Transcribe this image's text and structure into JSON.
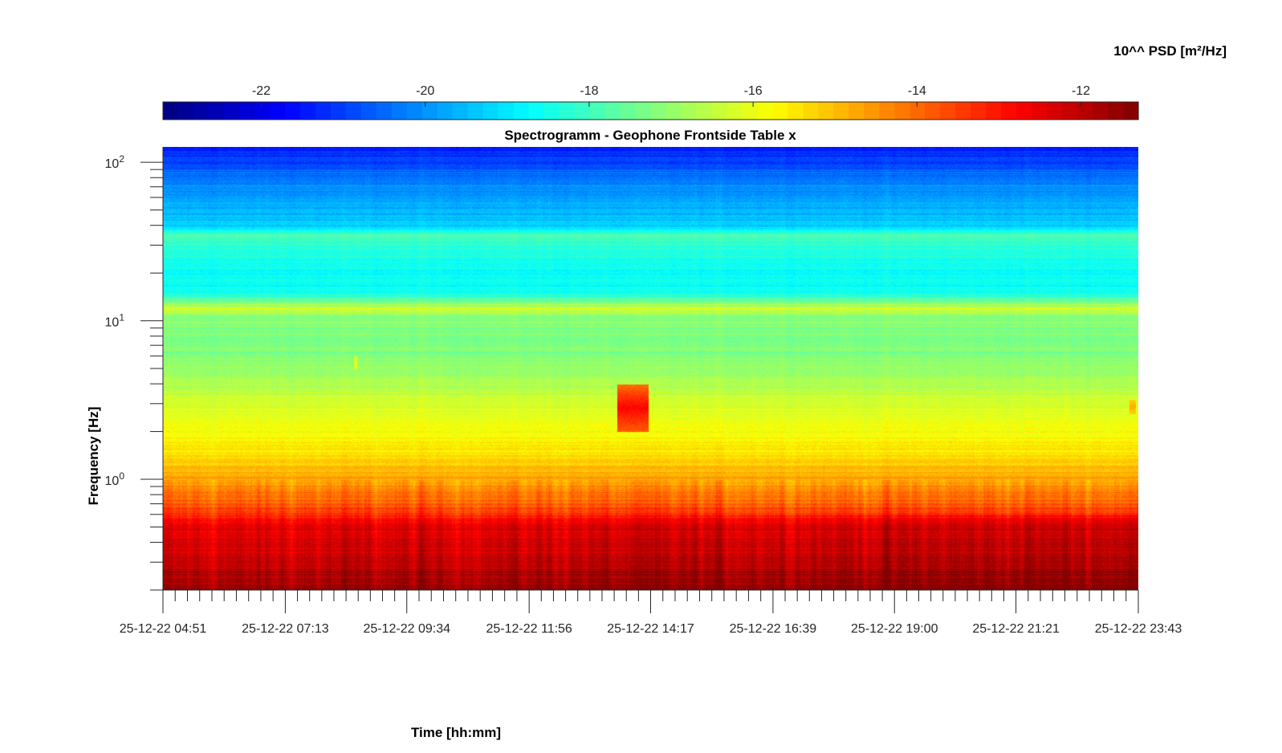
{
  "chart_data": {
    "type": "heatmap",
    "title": "Spectrogramm - Geophone Frontside Table x",
    "xlabel": "Time [hh:mm]",
    "ylabel": "Frequency [Hz]",
    "colorbar_label": "10^^ PSD [m²/Hz]",
    "colormap": "jet",
    "y_scale": "log",
    "ylim": [
      0.2,
      125
    ],
    "clim": [
      -23.2,
      -11.3
    ],
    "x_range": [
      "25-12-22 04:51",
      "25-12-22 23:43"
    ],
    "x_ticks": [
      "25-12-22 04:51",
      "25-12-22 07:13",
      "25-12-22 09:34",
      "25-12-22 11:56",
      "25-12-22 14:17",
      "25-12-22 16:39",
      "25-12-22 19:00",
      "25-12-22 21:21",
      "25-12-22 23:43"
    ],
    "y_ticks": [
      {
        "base": "10",
        "exp": "0",
        "value": 1
      },
      {
        "base": "10",
        "exp": "1",
        "value": 10
      },
      {
        "base": "10",
        "exp": "2",
        "value": 100
      }
    ],
    "colorbar_ticks": [
      "-22",
      "-20",
      "-18",
      "-16",
      "-14",
      "-12"
    ],
    "colorbar_tick_values": [
      -22,
      -20,
      -18,
      -16,
      -14,
      -12
    ],
    "psd_profile": [
      {
        "freq_hz": 0.2,
        "log_psd": -11.6
      },
      {
        "freq_hz": 0.3,
        "log_psd": -12.2
      },
      {
        "freq_hz": 0.5,
        "log_psd": -12.6
      },
      {
        "freq_hz": 0.7,
        "log_psd": -13.8
      },
      {
        "freq_hz": 1.0,
        "log_psd": -14.7
      },
      {
        "freq_hz": 1.5,
        "log_psd": -15.5
      },
      {
        "freq_hz": 2.0,
        "log_psd": -15.8
      },
      {
        "freq_hz": 3.0,
        "log_psd": -16.2
      },
      {
        "freq_hz": 5.0,
        "log_psd": -17.0
      },
      {
        "freq_hz": 8.0,
        "log_psd": -17.4
      },
      {
        "freq_hz": 11.0,
        "log_psd": -17.0
      },
      {
        "freq_hz": 12.0,
        "log_psd": -16.2
      },
      {
        "freq_hz": 13.0,
        "log_psd": -17.2
      },
      {
        "freq_hz": 15.0,
        "log_psd": -18.6
      },
      {
        "freq_hz": 20.0,
        "log_psd": -18.7
      },
      {
        "freq_hz": 30.0,
        "log_psd": -18.2
      },
      {
        "freq_hz": 35.0,
        "log_psd": -17.8
      },
      {
        "freq_hz": 40.0,
        "log_psd": -19.4
      },
      {
        "freq_hz": 60.0,
        "log_psd": -19.8
      },
      {
        "freq_hz": 80.0,
        "log_psd": -20.3
      },
      {
        "freq_hz": 100.0,
        "log_psd": -20.9
      },
      {
        "freq_hz": 125.0,
        "log_psd": -21.4
      }
    ],
    "events": [
      {
        "time": "25-12-22 13:38",
        "time_end": "25-12-22 14:14",
        "freq_low_hz": 2.0,
        "freq_high_hz": 4.0,
        "log_psd": -12.8
      },
      {
        "time": "25-12-22 08:32",
        "time_end": "25-12-22 08:36",
        "freq_low_hz": 4.9,
        "freq_high_hz": 6.0,
        "log_psd": -16.0
      },
      {
        "time": "25-12-22 23:32",
        "time_end": "25-12-22 23:40",
        "freq_low_hz": 2.6,
        "freq_high_hz": 3.2,
        "log_psd": -14.8
      }
    ],
    "grid": false
  }
}
